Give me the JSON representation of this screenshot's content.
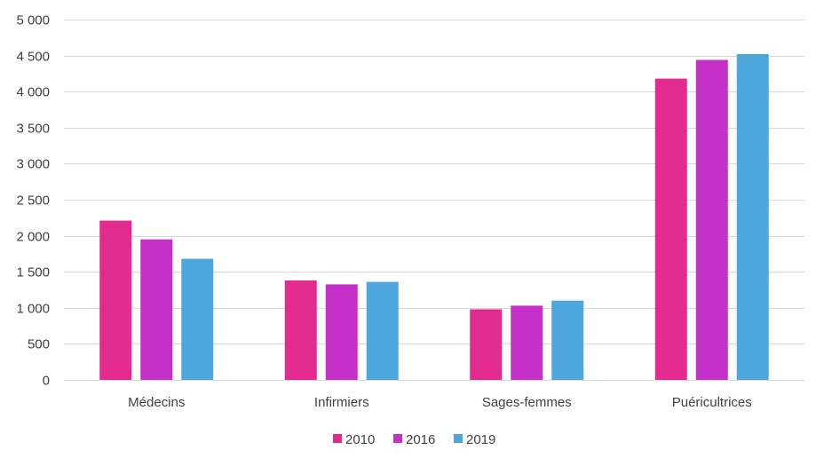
{
  "chart_data": {
    "type": "bar",
    "title": "",
    "xlabel": "",
    "ylabel": "",
    "categories": [
      "Médecins",
      "Infirmiers",
      "Sages-femmes",
      "Puéricultrices"
    ],
    "series": [
      {
        "name": "2010",
        "color": "#E22A8F",
        "values": [
          2210,
          1380,
          980,
          4180
        ]
      },
      {
        "name": "2016",
        "color": "#C530C9",
        "values": [
          1950,
          1325,
          1030,
          4440
        ]
      },
      {
        "name": "2019",
        "color": "#4EA7DC",
        "values": [
          1680,
          1360,
          1100,
          4520
        ]
      }
    ],
    "ylim": [
      0,
      5000
    ],
    "yticks": [
      0,
      500,
      1000,
      1500,
      2000,
      2500,
      3000,
      3500,
      4000,
      4500,
      5000
    ],
    "ytick_labels": [
      "0",
      "500",
      "1 000",
      "1 500",
      "2 000",
      "2 500",
      "3 000",
      "3 500",
      "4 000",
      "4 500",
      "5 000"
    ],
    "grid": true,
    "legend_position": "bottom"
  }
}
